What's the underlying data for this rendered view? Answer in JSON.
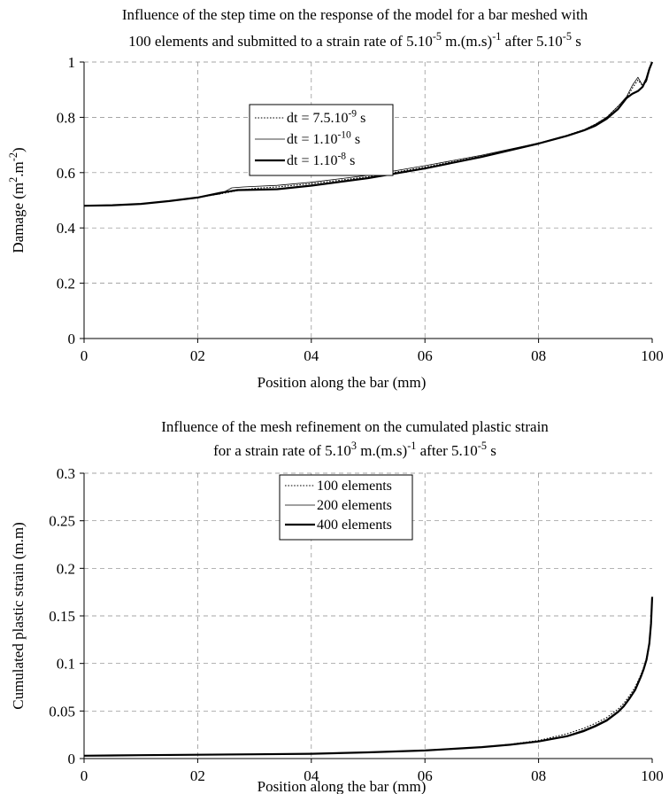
{
  "chart_data": [
    {
      "type": "line",
      "title_parts": [
        "Influence of the step time on the response of the model for a bar meshed with",
        "100 elements and submitted to a strain rate of 5.10",
        "-5",
        " m.(m.s)",
        "-1",
        " after 5.10",
        "-5",
        " s"
      ],
      "xlabel": "Position along the bar (mm)",
      "ylabel_parts": [
        "Damage (m",
        "2",
        ".m",
        "-2",
        ")"
      ],
      "xlim": [
        0,
        100
      ],
      "ylim": [
        0,
        1
      ],
      "x_tick_labels": [
        "0",
        "02",
        "04",
        "06",
        "08",
        "100"
      ],
      "x_ticks": [
        0,
        20,
        40,
        60,
        80,
        100
      ],
      "y_tick_labels": [
        "0",
        "0.2",
        "0.4",
        "0.6",
        "0.8",
        "1"
      ],
      "y_ticks": [
        0,
        0.2,
        0.4,
        0.6,
        0.8,
        1
      ],
      "grid": true,
      "legend_position": "top-center",
      "series": [
        {
          "name_parts": [
            "dt = 7.5.10",
            "-9",
            " s"
          ],
          "style": "dotted",
          "x": [
            0,
            5,
            10,
            15,
            20,
            24,
            27,
            30,
            34,
            40,
            50,
            60,
            70,
            80,
            85,
            88,
            90,
            92,
            94,
            95.5,
            96.5,
            97.5,
            98.3,
            99,
            99.5,
            100
          ],
          "y": [
            0.48,
            0.482,
            0.487,
            0.497,
            0.51,
            0.523,
            0.535,
            0.543,
            0.548,
            0.56,
            0.585,
            0.62,
            0.66,
            0.705,
            0.735,
            0.755,
            0.775,
            0.8,
            0.84,
            0.87,
            0.905,
            0.935,
            0.915,
            0.93,
            0.97,
            1.0
          ]
        },
        {
          "name_parts": [
            "dt = 1.10",
            "-10",
            " s"
          ],
          "style": "thin",
          "x": [
            0,
            5,
            10,
            15,
            20,
            24,
            26,
            28,
            30,
            34,
            40,
            50,
            60,
            70,
            80,
            85,
            88,
            90,
            92,
            94,
            95.5,
            96.5,
            97.5,
            98.3,
            99,
            99.5,
            100
          ],
          "y": [
            0.48,
            0.482,
            0.487,
            0.497,
            0.51,
            0.523,
            0.545,
            0.548,
            0.55,
            0.554,
            0.565,
            0.59,
            0.625,
            0.663,
            0.707,
            0.735,
            0.755,
            0.775,
            0.8,
            0.84,
            0.875,
            0.915,
            0.945,
            0.915,
            0.93,
            0.97,
            1.0
          ]
        },
        {
          "name_parts": [
            "dt = 1.10",
            "-8",
            " s"
          ],
          "style": "thick",
          "x": [
            0,
            5,
            10,
            15,
            20,
            24,
            27,
            30,
            34,
            40,
            50,
            60,
            70,
            80,
            85,
            88,
            90,
            92,
            94,
            95.5,
            96.5,
            97.5,
            98.3,
            99,
            99.5,
            100
          ],
          "y": [
            0.48,
            0.482,
            0.487,
            0.497,
            0.51,
            0.527,
            0.537,
            0.538,
            0.54,
            0.553,
            0.58,
            0.615,
            0.657,
            0.705,
            0.733,
            0.753,
            0.77,
            0.795,
            0.83,
            0.87,
            0.885,
            0.895,
            0.91,
            0.94,
            0.975,
            1.0
          ]
        }
      ]
    },
    {
      "type": "line",
      "title_parts": [
        "Influence of the mesh refinement on the cumulated plastic strain",
        "for a strain rate of 5.10",
        "3",
        " m.(m.s)",
        "-1",
        " after 5.10",
        "-5",
        " s"
      ],
      "xlabel": "Position along the bar (mm)",
      "ylabel": "Cumulated plastic strain (m.m)",
      "xlim": [
        0,
        100
      ],
      "ylim": [
        0,
        0.3
      ],
      "x_tick_labels": [
        "0",
        "02",
        "04",
        "06",
        "08",
        "100"
      ],
      "x_ticks": [
        0,
        20,
        40,
        60,
        80,
        100
      ],
      "y_tick_labels": [
        "0",
        "0.05",
        "0.1",
        "0.15",
        "0.2",
        "0.25",
        "0.3"
      ],
      "y_ticks": [
        0,
        0.05,
        0.1,
        0.15,
        0.2,
        0.25,
        0.3
      ],
      "grid": true,
      "legend_position": "top-left",
      "series": [
        {
          "name": "100 elements",
          "style": "dotted",
          "x": [
            0,
            10,
            20,
            30,
            40,
            50,
            60,
            70,
            75,
            80,
            85,
            88,
            90,
            92,
            94,
            95,
            96,
            97,
            98,
            98.5,
            99,
            99.5,
            99.8,
            100
          ],
          "y": [
            0.003,
            0.0035,
            0.004,
            0.0045,
            0.005,
            0.0065,
            0.0085,
            0.012,
            0.015,
            0.019,
            0.026,
            0.032,
            0.037,
            0.043,
            0.052,
            0.058,
            0.066,
            0.075,
            0.088,
            0.096,
            0.106,
            0.122,
            0.14,
            0.165
          ]
        },
        {
          "name": "200 elements",
          "style": "thin",
          "x": [
            0,
            10,
            20,
            30,
            40,
            50,
            60,
            70,
            75,
            80,
            85,
            88,
            90,
            92,
            94,
            95,
            96,
            97,
            98,
            98.5,
            99,
            99.5,
            99.8,
            100
          ],
          "y": [
            0.003,
            0.0035,
            0.004,
            0.0045,
            0.005,
            0.0065,
            0.0085,
            0.012,
            0.0145,
            0.018,
            0.024,
            0.03,
            0.035,
            0.041,
            0.05,
            0.056,
            0.064,
            0.073,
            0.087,
            0.095,
            0.105,
            0.122,
            0.142,
            0.168
          ]
        },
        {
          "name": "400 elements",
          "style": "thick",
          "x": [
            0,
            10,
            20,
            30,
            40,
            50,
            60,
            70,
            75,
            80,
            85,
            88,
            90,
            92,
            94,
            95,
            96,
            97,
            98,
            98.5,
            99,
            99.5,
            99.8,
            100
          ],
          "y": [
            0.003,
            0.0035,
            0.004,
            0.0045,
            0.005,
            0.0065,
            0.0085,
            0.012,
            0.0145,
            0.018,
            0.0235,
            0.029,
            0.034,
            0.04,
            0.049,
            0.055,
            0.063,
            0.072,
            0.086,
            0.094,
            0.104,
            0.121,
            0.142,
            0.17
          ]
        }
      ]
    }
  ]
}
